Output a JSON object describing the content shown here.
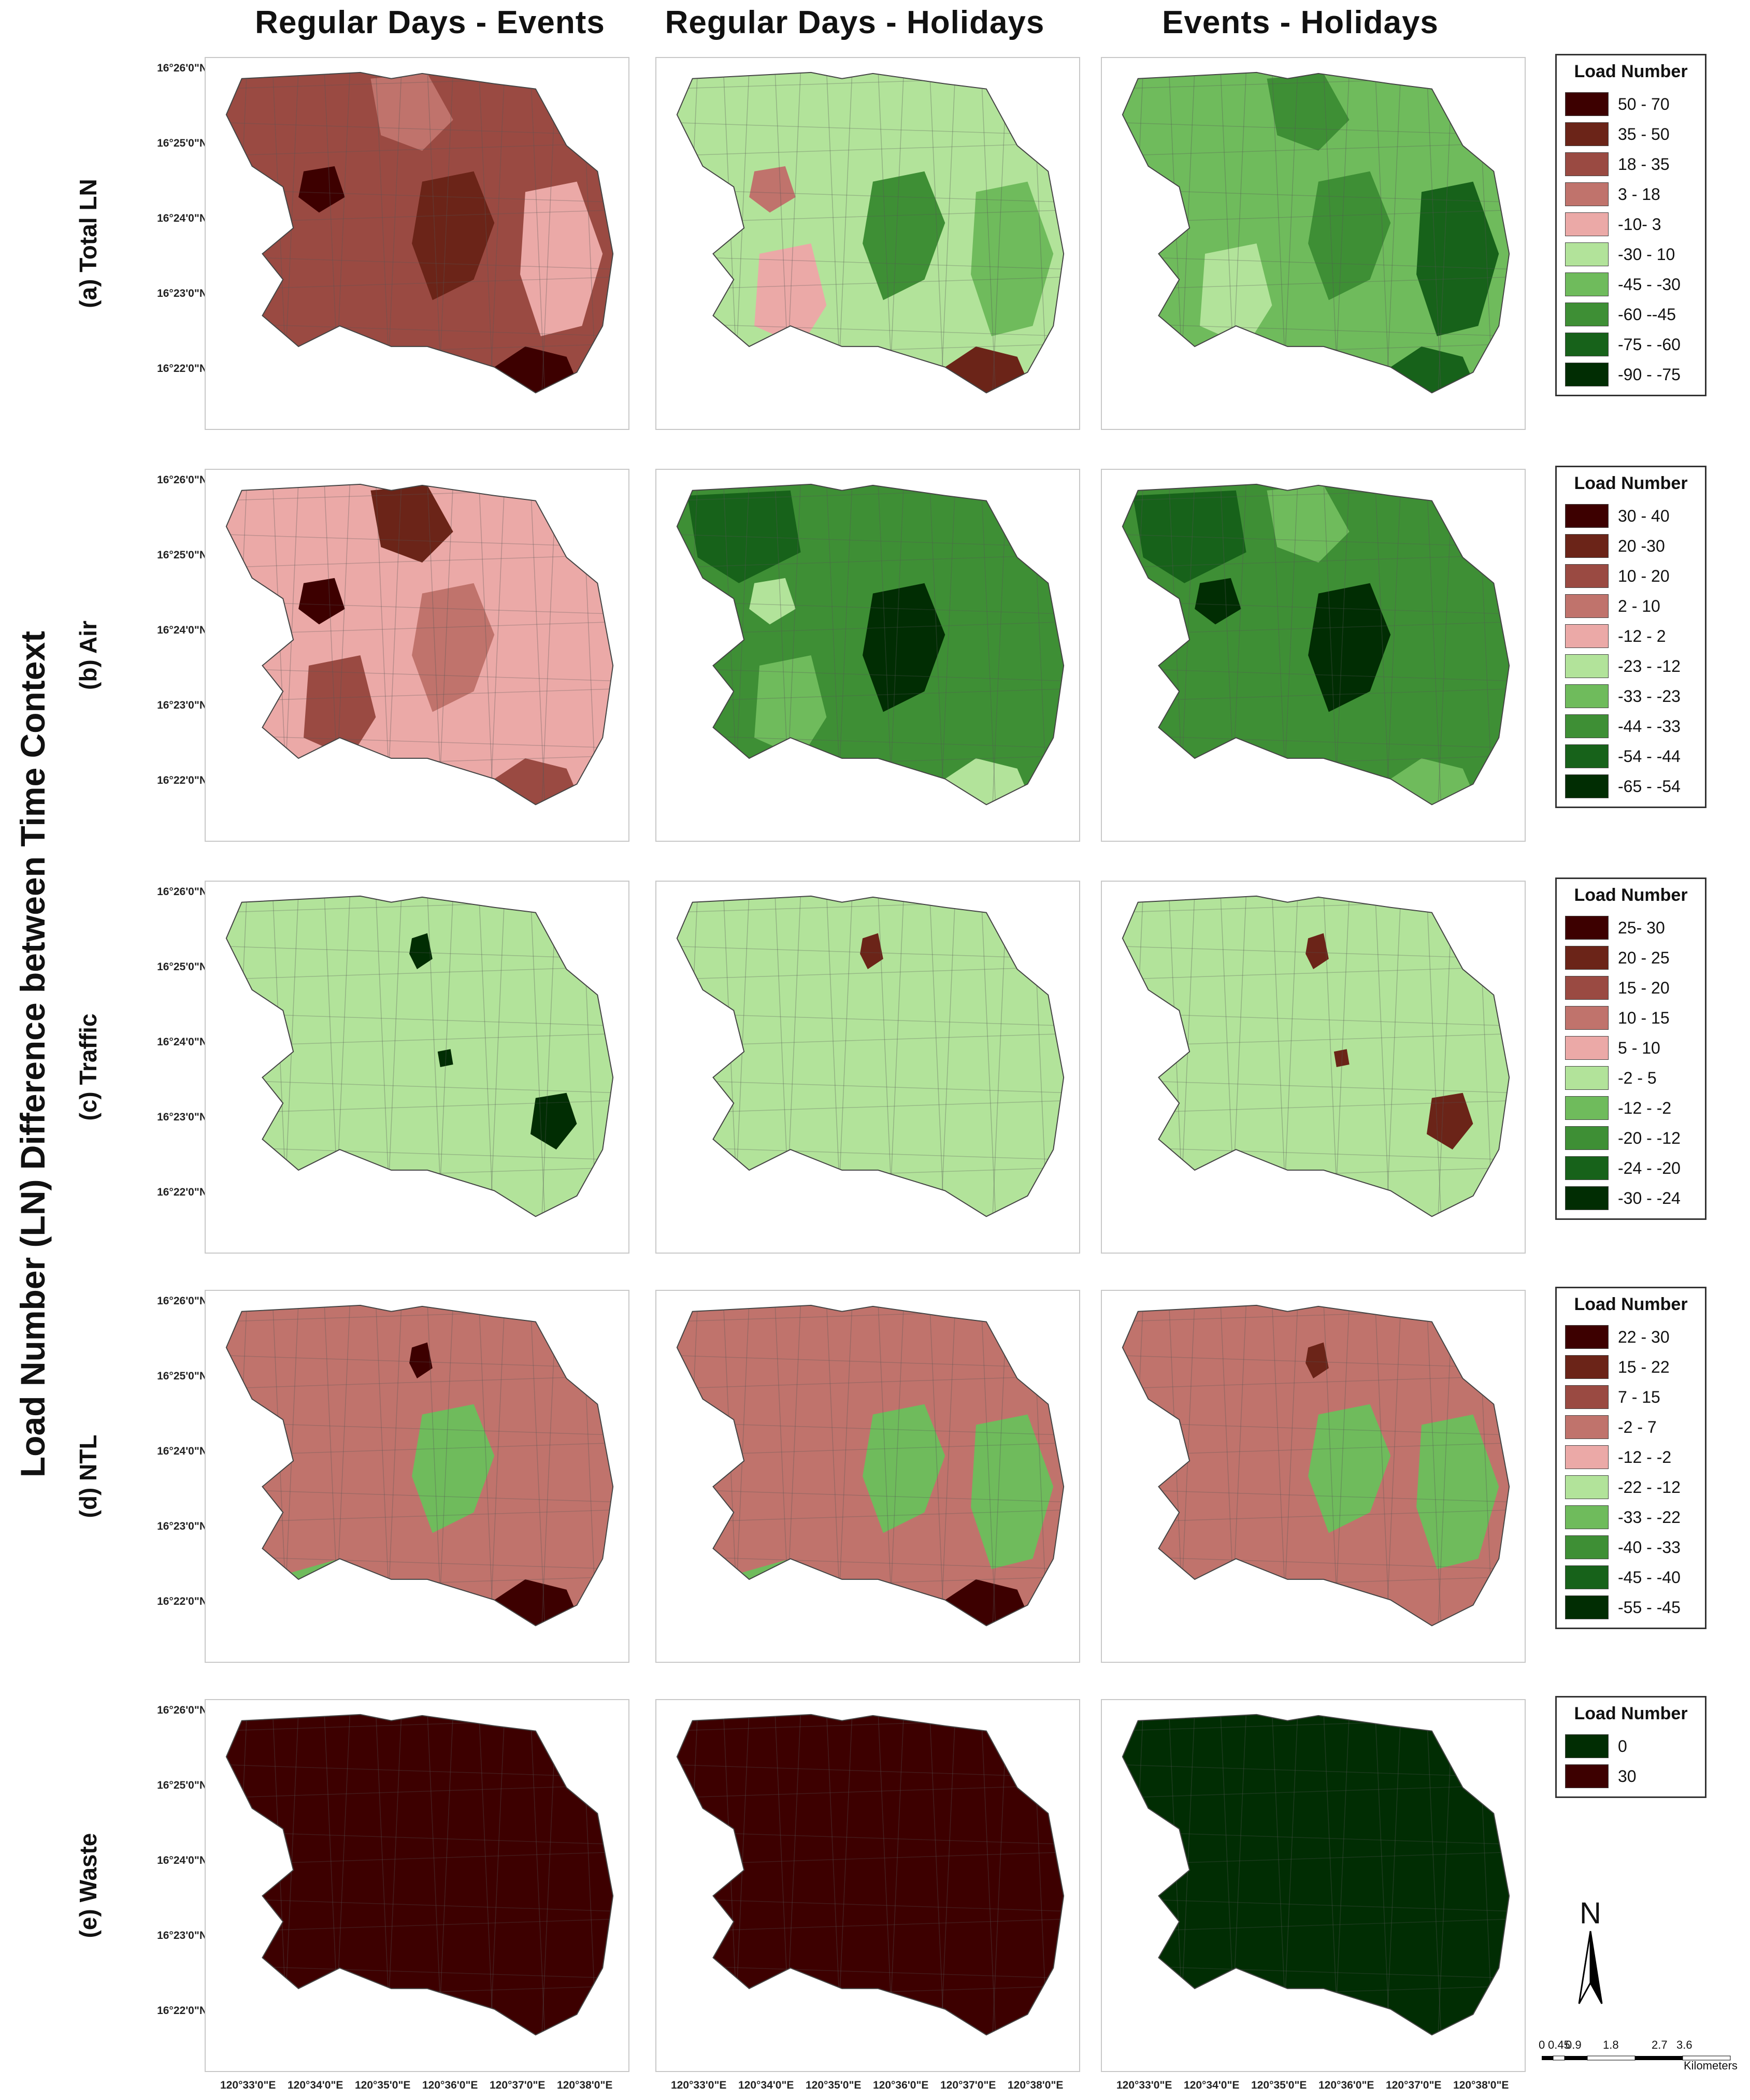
{
  "figure": {
    "side_title": "Load Number (LN) Difference between Time Context",
    "column_titles": [
      "Regular Days - Events",
      "Regular Days - Holidays",
      "Events - Holidays"
    ],
    "lat_ticks": [
      "16°26'0\"N",
      "16°25'0\"N",
      "16°24'0\"N",
      "16°23'0\"N",
      "16°22'0\"N"
    ],
    "lon_ticks": [
      "120°33'0\"E",
      "120°34'0\"E",
      "120°35'0\"E",
      "120°36'0\"E",
      "120°37'0\"E",
      "120°38'0\"E"
    ]
  },
  "rows": [
    {
      "label": "(a) Total LN",
      "legend_title": "Load Number",
      "legend": [
        {
          "label": "50 - 70",
          "color": "#3d0000"
        },
        {
          "label": "35 - 50",
          "color": "#6b2418"
        },
        {
          "label": "18 - 35",
          "color": "#9a4a42"
        },
        {
          "label": "3 - 18",
          "color": "#c0736c"
        },
        {
          "label": "-10- 3",
          "color": "#eba9a7"
        },
        {
          "label": "-30 - 10",
          "color": "#b2e39a"
        },
        {
          "label": "-45 - -30",
          "color": "#6fbb5c"
        },
        {
          "label": "-60 --45",
          "color": "#3e8f35"
        },
        {
          "label": "-75 - -60",
          "color": "#17621a"
        },
        {
          "label": "-90 - -75",
          "color": "#012d03"
        }
      ],
      "maps": [
        {
          "base": "#9a4a42",
          "patches": [
            {
              "color": "#3d0000",
              "shape": "se"
            },
            {
              "color": "#6b2418",
              "shape": "center"
            },
            {
              "color": "#eba9a7",
              "shape": "east"
            },
            {
              "color": "#c0736c",
              "shape": "north"
            },
            {
              "color": "#3d0000",
              "shape": "west"
            }
          ]
        },
        {
          "base": "#b2e39a",
          "patches": [
            {
              "color": "#6b2418",
              "shape": "se"
            },
            {
              "color": "#eba9a7",
              "shape": "sw"
            },
            {
              "color": "#6fbb5c",
              "shape": "east"
            },
            {
              "color": "#3e8f35",
              "shape": "center"
            },
            {
              "color": "#c0736c",
              "shape": "west"
            }
          ]
        },
        {
          "base": "#6fbb5c",
          "patches": [
            {
              "color": "#17621a",
              "shape": "east"
            },
            {
              "color": "#17621a",
              "shape": "se"
            },
            {
              "color": "#3e8f35",
              "shape": "center"
            },
            {
              "color": "#3e8f35",
              "shape": "north"
            },
            {
              "color": "#b2e39a",
              "shape": "sw"
            }
          ]
        }
      ]
    },
    {
      "label": "(b) Air",
      "legend_title": "Load Number",
      "legend": [
        {
          "label": "30 - 40",
          "color": "#3d0000"
        },
        {
          "label": "20 -30",
          "color": "#6b2418"
        },
        {
          "label": "10 - 20",
          "color": "#9a4a42"
        },
        {
          "label": "2 - 10",
          "color": "#c0736c"
        },
        {
          "label": "-12 - 2",
          "color": "#eba9a7"
        },
        {
          "label": "-23 - -12",
          "color": "#b2e39a"
        },
        {
          "label": "-33 - -23",
          "color": "#6fbb5c"
        },
        {
          "label": "-44 - -33",
          "color": "#3e8f35"
        },
        {
          "label": "-54 - -44",
          "color": "#17621a"
        },
        {
          "label": "-65 - -54",
          "color": "#012d03"
        }
      ],
      "maps": [
        {
          "base": "#eba9a7",
          "patches": [
            {
              "color": "#9a4a42",
              "shape": "se"
            },
            {
              "color": "#9a4a42",
              "shape": "sw"
            },
            {
              "color": "#3d0000",
              "shape": "west"
            },
            {
              "color": "#6b2418",
              "shape": "north"
            },
            {
              "color": "#c0736c",
              "shape": "center"
            }
          ]
        },
        {
          "base": "#3e8f35",
          "patches": [
            {
              "color": "#012d03",
              "shape": "center"
            },
            {
              "color": "#b2e39a",
              "shape": "se"
            },
            {
              "color": "#17621a",
              "shape": "nw"
            },
            {
              "color": "#6fbb5c",
              "shape": "sw"
            },
            {
              "color": "#b2e39a",
              "shape": "west"
            }
          ]
        },
        {
          "base": "#3e8f35",
          "patches": [
            {
              "color": "#012d03",
              "shape": "center"
            },
            {
              "color": "#6fbb5c",
              "shape": "se"
            },
            {
              "color": "#17621a",
              "shape": "nw"
            },
            {
              "color": "#012d03",
              "shape": "west"
            },
            {
              "color": "#6fbb5c",
              "shape": "north"
            }
          ]
        }
      ]
    },
    {
      "label": "(c) Traffic",
      "legend_title": "Load Number",
      "legend": [
        {
          "label": "25- 30",
          "color": "#3d0000"
        },
        {
          "label": "20 - 25",
          "color": "#6b2418"
        },
        {
          "label": "15 - 20",
          "color": "#9a4a42"
        },
        {
          "label": "10 - 15",
          "color": "#c0736c"
        },
        {
          "label": "5 - 10",
          "color": "#eba9a7"
        },
        {
          "label": "-2 - 5",
          "color": "#b2e39a"
        },
        {
          "label": "-12 - -2",
          "color": "#6fbb5c"
        },
        {
          "label": "-20 - -12",
          "color": "#3e8f35"
        },
        {
          "label": "-24 - -20",
          "color": "#17621a"
        },
        {
          "label": "-30 - -24",
          "color": "#012d03"
        }
      ],
      "maps": [
        {
          "base": "#b2e39a",
          "patches": [
            {
              "color": "#012d03",
              "shape": "blob-east"
            },
            {
              "color": "#012d03",
              "shape": "dot-north"
            },
            {
              "color": "#012d03",
              "shape": "dot-center"
            }
          ]
        },
        {
          "base": "#b2e39a",
          "patches": [
            {
              "color": "#6b2418",
              "shape": "dot-north"
            }
          ]
        },
        {
          "base": "#b2e39a",
          "patches": [
            {
              "color": "#6b2418",
              "shape": "blob-east"
            },
            {
              "color": "#6b2418",
              "shape": "dot-north"
            },
            {
              "color": "#6b2418",
              "shape": "dot-center"
            }
          ]
        }
      ]
    },
    {
      "label": "(d) NTL",
      "legend_title": "Load Number",
      "legend": [
        {
          "label": "22 - 30",
          "color": "#3d0000"
        },
        {
          "label": "15 - 22",
          "color": "#6b2418"
        },
        {
          "label": "7 - 15",
          "color": "#9a4a42"
        },
        {
          "label": "-2 - 7",
          "color": "#c0736c"
        },
        {
          "label": "-12 - -2",
          "color": "#eba9a7"
        },
        {
          "label": "-22 - -12",
          "color": "#b2e39a"
        },
        {
          "label": "-33 - -22",
          "color": "#6fbb5c"
        },
        {
          "label": "-40 - -33",
          "color": "#3e8f35"
        },
        {
          "label": "-45 - -40",
          "color": "#17621a"
        },
        {
          "label": "-55 - -45",
          "color": "#012d03"
        }
      ],
      "maps": [
        {
          "base": "#c0736c",
          "patches": [
            {
              "color": "#3d0000",
              "shape": "se"
            },
            {
              "color": "#6fbb5c",
              "shape": "south-strip"
            },
            {
              "color": "#6fbb5c",
              "shape": "center"
            },
            {
              "color": "#3d0000",
              "shape": "dot-north"
            }
          ]
        },
        {
          "base": "#c0736c",
          "patches": [
            {
              "color": "#3d0000",
              "shape": "se"
            },
            {
              "color": "#6fbb5c",
              "shape": "east"
            },
            {
              "color": "#6fbb5c",
              "shape": "south-strip"
            },
            {
              "color": "#6fbb5c",
              "shape": "center"
            }
          ]
        },
        {
          "base": "#c0736c",
          "patches": [
            {
              "color": "#6fbb5c",
              "shape": "east"
            },
            {
              "color": "#6fbb5c",
              "shape": "center"
            },
            {
              "color": "#6b2418",
              "shape": "dot-north"
            }
          ]
        }
      ]
    },
    {
      "label": "(e) Waste",
      "legend_title": "Load Number",
      "legend": [
        {
          "label": "0",
          "color": "#012d03"
        },
        {
          "label": "30",
          "color": "#3d0000"
        }
      ],
      "maps": [
        {
          "base": "#3d0000",
          "patches": []
        },
        {
          "base": "#3d0000",
          "patches": []
        },
        {
          "base": "#012d03",
          "patches": []
        }
      ]
    }
  ],
  "north_arrow": {
    "letter": "N"
  },
  "scale_bar": {
    "ticks": [
      "0",
      "0.45",
      "0.9",
      "1.8",
      "2.7",
      "3.6"
    ],
    "unit": "Kilometers"
  }
}
